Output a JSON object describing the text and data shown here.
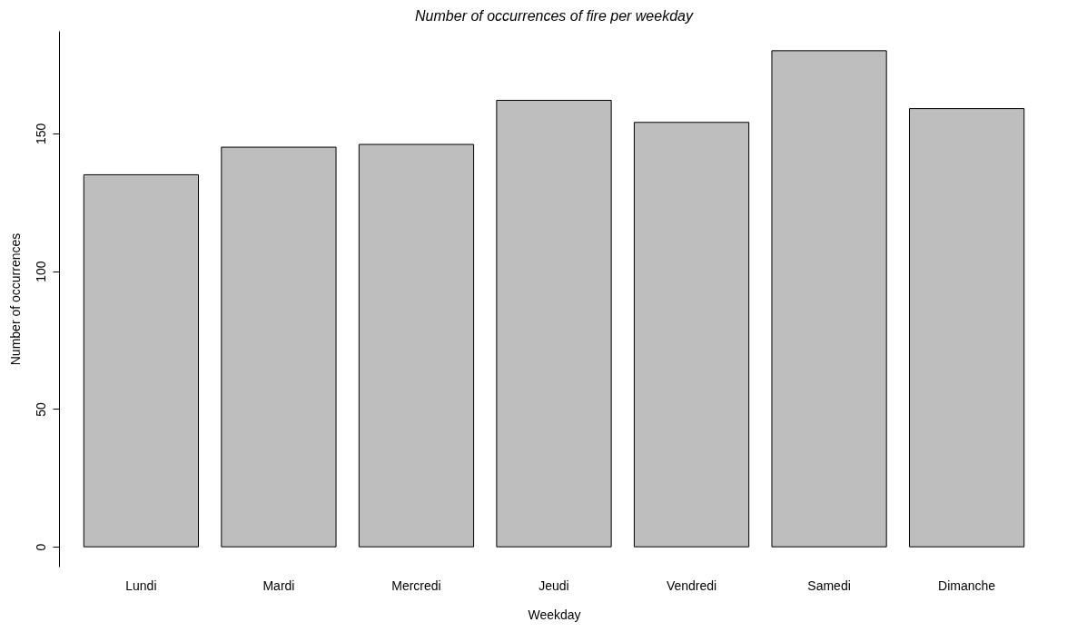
{
  "chart_data": {
    "type": "bar",
    "title": "Number of occurrences of fire per weekday",
    "xlabel": "Weekday",
    "ylabel": "Number of occurrences",
    "categories": [
      "Lundi",
      "Mardi",
      "Mercredi",
      "Jeudi",
      "Vendredi",
      "Samedi",
      "Dimanche"
    ],
    "values": [
      135,
      145,
      146,
      162,
      154,
      180,
      159
    ],
    "color": "#bebebe",
    "ylim": [
      -7.2,
      187.2
    ],
    "yticks": [
      0,
      50,
      100,
      150
    ],
    "grid": false
  }
}
